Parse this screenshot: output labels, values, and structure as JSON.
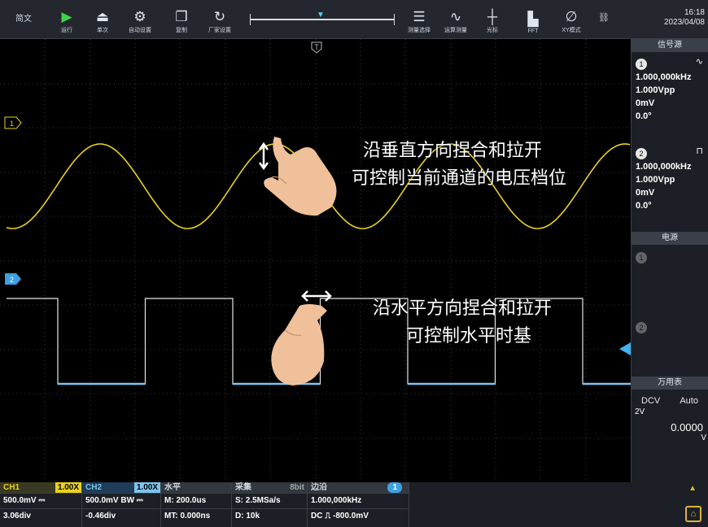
{
  "toolbar": {
    "language": "简文",
    "buttons": [
      {
        "label": "运行",
        "icon": "play-icon"
      },
      {
        "label": "单次",
        "icon": "single-icon"
      },
      {
        "label": "自动设置",
        "icon": "auto-set-icon"
      },
      {
        "label": "复制",
        "icon": "copy-icon"
      },
      {
        "label": "厂家设置",
        "icon": "factory-icon"
      },
      {
        "label": "测量选择",
        "icon": "measure-icon"
      },
      {
        "label": "运算测量",
        "icon": "math-icon"
      },
      {
        "label": "光标",
        "icon": "cursor-icon"
      },
      {
        "label": "FFT",
        "icon": "fft-icon"
      },
      {
        "label": "XY模式",
        "icon": "xy-icon"
      }
    ],
    "time": "16:18",
    "date": "2023/04/08"
  },
  "plot": {
    "trigger_marker": "T",
    "ch1_marker": "1",
    "ch2_marker": "2",
    "gesture_vertical_line1": "沿垂直方向捏合和拉开",
    "gesture_vertical_line2": "可控制当前通道的电压档位",
    "gesture_horizontal_line1": "沿水平方向捏合和拉开",
    "gesture_horizontal_line2": "可控制水平时基",
    "colors": {
      "ch1": "#e8d21c",
      "ch2": "#7ec4ee",
      "grid": "#3a3a3a",
      "trigger": "#3fb2f0"
    }
  },
  "generator": {
    "title": "信号源",
    "ch1": {
      "badge": "1",
      "freq": "1.000,000kHz",
      "amp": "1.000Vpp",
      "offset": "0mV",
      "phase": "0.0°"
    },
    "ch2": {
      "badge": "2",
      "freq": "1.000,000kHz",
      "amp": "1.000Vpp",
      "offset": "0mV",
      "phase": "0.0°"
    }
  },
  "power": {
    "title": "电源",
    "ch1_badge": "1",
    "ch2_badge": "2"
  },
  "multimeter": {
    "title": "万用表",
    "mode": "DCV",
    "range_mode": "Auto",
    "range": "2V",
    "value": "0.0000",
    "unit": "V"
  },
  "status": {
    "ch1": {
      "label": "CH1",
      "probe": "1.00X",
      "scale": "500.0mV ⎓",
      "pos": "3.06div"
    },
    "ch2": {
      "label": "CH2",
      "probe": "1.00X",
      "scale": "500.0mV BW ⎓",
      "pos": "-0.46div"
    },
    "horiz": {
      "label": "水平",
      "mtime": "M: 200.0us",
      "mt": "MT: 0.000ns"
    },
    "acq": {
      "label": "采集",
      "bits": "8bit",
      "rate": "S: 2.5MSa/s",
      "depth": "D: 10k"
    },
    "trigger": {
      "label": "边沿",
      "source": "1",
      "freq": "1.000,000kHz",
      "cond": "DC ⎍ -800.0mV"
    }
  }
}
